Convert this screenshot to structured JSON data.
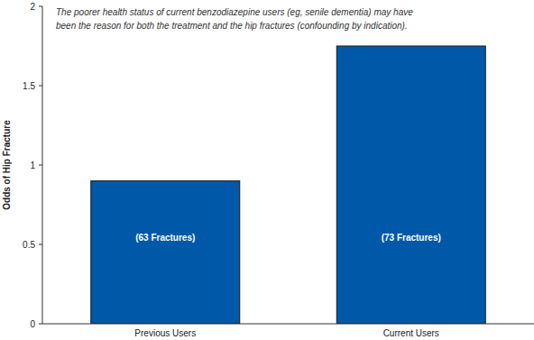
{
  "chart_data": {
    "type": "bar",
    "y_label": "Odds of Hip Fracture",
    "annotation": [
      "The poorer health status of current benzodiazepine users (eg, senile dementia) may have",
      "been the reason for both the treatment and the hip fractures (confounding by indication)."
    ],
    "categories": [
      "Previous Users",
      "Current Users"
    ],
    "values": [
      0.9,
      1.75
    ],
    "bar_labels": [
      "(63 Fractures)",
      "(73 Fractures)"
    ],
    "color": "#0059a8",
    "ylim": [
      0,
      2
    ],
    "yticks": [
      0,
      0.5,
      1,
      1.5,
      2
    ],
    "grid": false
  }
}
